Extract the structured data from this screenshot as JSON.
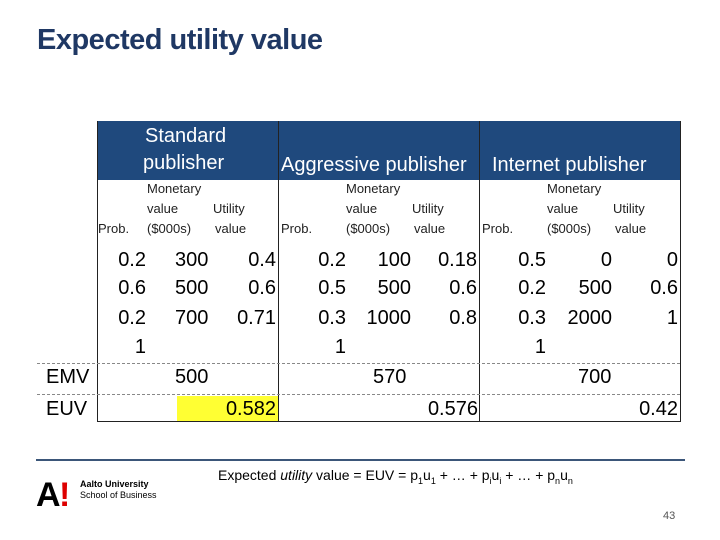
{
  "title": "Expected utility value",
  "headers": {
    "standard": [
      "Standard",
      "publisher"
    ],
    "aggressive": "Aggressive publisher",
    "internet": "Internet publisher"
  },
  "subheaders": {
    "prob": "Prob.",
    "monetary_lines": [
      "Monetary",
      "value",
      "($000s)"
    ],
    "utility_lines": [
      "Utility",
      "value"
    ]
  },
  "groups": [
    {
      "prob": [
        "0.2",
        "0.6",
        "0.2",
        "1"
      ],
      "value": [
        "300",
        "500",
        "700"
      ],
      "utility": [
        "0.4",
        "0.6",
        "0.71"
      ],
      "emv": "500",
      "euv": "0.582"
    },
    {
      "prob": [
        "0.2",
        "0.5",
        "0.3",
        "1"
      ],
      "value": [
        "100",
        "500",
        "1000"
      ],
      "utility": [
        "0.18",
        "0.6",
        "0.8"
      ],
      "emv": "570",
      "euv": "0.576"
    },
    {
      "prob": [
        "0.5",
        "0.2",
        "0.3",
        "1"
      ],
      "value": [
        "0",
        "500",
        "2000"
      ],
      "utility": [
        "0",
        "0.6",
        "1"
      ],
      "emv": "700",
      "euv": "0.42"
    }
  ],
  "row_labels": {
    "emv": "EMV",
    "euv": "EUV"
  },
  "formula": {
    "prefix": "Expected ",
    "italic": "utility",
    "rest": " value = EUV = p",
    "full_tail": "1u1 + … + piui + … + pnun"
  },
  "logo": {
    "line1": "Aalto University",
    "line2": "School of Business"
  },
  "page_number": "43",
  "colors": {
    "header_bg": "#1f497d",
    "title": "#1f3864",
    "highlight": "#ffff33"
  }
}
